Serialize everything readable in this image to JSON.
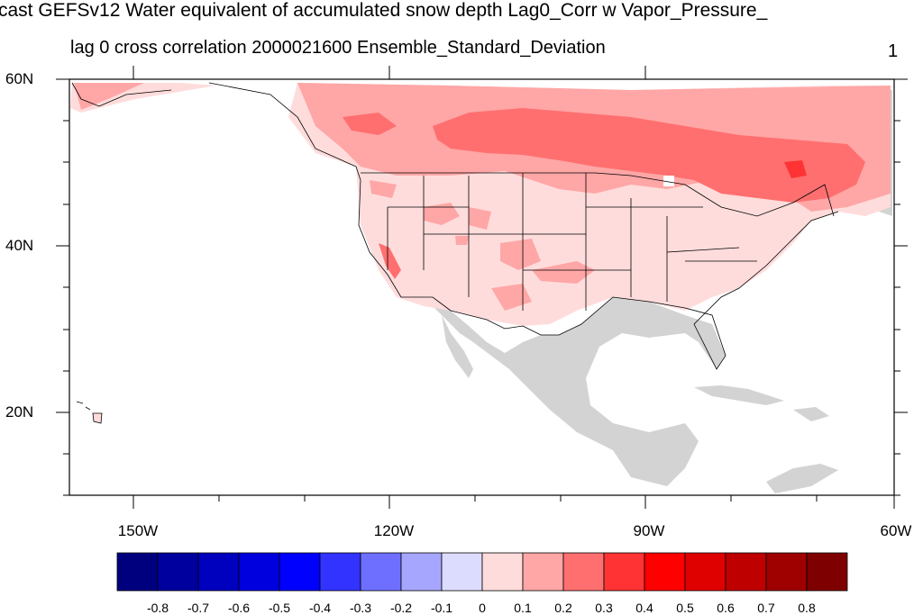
{
  "title": "cast GEFSv12 Water equivalent of accumulated snow depth Lag0_Corr w Vapor_Pressure_",
  "subtitle": "lag 0 cross correlation 2000021600 Ensemble_Standard_Deviation",
  "panel_number": "1",
  "lat_labels": [
    "60N",
    "40N",
    "20N"
  ],
  "lon_labels": [
    "150W",
    "120W",
    "90W",
    "60W"
  ],
  "colorbar": {
    "colors": [
      "#00007f",
      "#00009f",
      "#0000bf",
      "#0000df",
      "#0000ff",
      "#3333ff",
      "#6f6fff",
      "#a6a6ff",
      "#dcdcff",
      "#ffdcdc",
      "#ffa6a6",
      "#ff6f6f",
      "#ff3333",
      "#ff0000",
      "#df0000",
      "#bf0000",
      "#9f0000",
      "#7f0000"
    ],
    "labels": [
      "-0.8",
      "-0.7",
      "-0.6",
      "-0.5",
      "-0.4",
      "-0.3",
      "-0.2",
      "-0.1",
      "0",
      "0.1",
      "0.2",
      "0.3",
      "0.4",
      "0.5",
      "0.6",
      "0.7",
      "0.8"
    ]
  },
  "colors": {
    "land_masked": "#d3d3d3",
    "ocean": "#ffffff",
    "level_0_to_0.1": "#ffdcdc",
    "level_0.1_to_0.2": "#ffa6a6",
    "level_0.2_to_0.3": "#ff6f6f",
    "level_0.3_to_0.4": "#ff3333"
  }
}
